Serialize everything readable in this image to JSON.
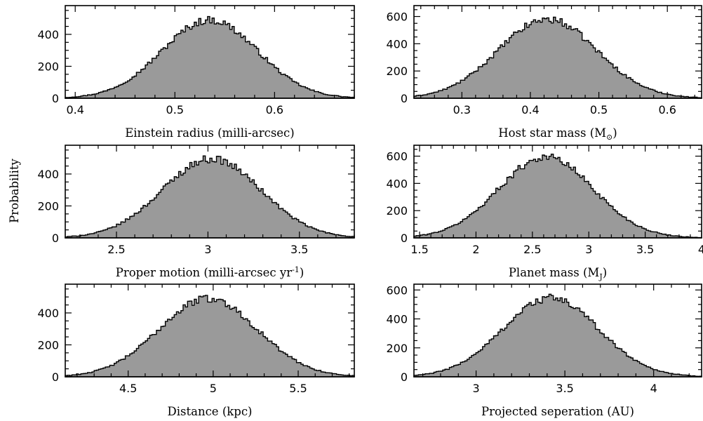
{
  "figure": {
    "ylabel": "Probability"
  },
  "colors": {
    "fill": "#9a9a9a",
    "stroke": "#000000",
    "background": "#ffffff"
  },
  "chart_data": [
    {
      "type": "histogram",
      "xlabel": "Einstein radius (milli-arcsec)",
      "xlim": [
        0.39,
        0.68
      ],
      "ylim": [
        0,
        580
      ],
      "xticks": [
        0.4,
        0.5,
        0.6
      ],
      "xtick_labels": [
        "0.4",
        "0.5",
        "0.6"
      ],
      "yticks": [
        0,
        200,
        400
      ],
      "ytick_labels": [
        "0",
        "200",
        "400"
      ],
      "peak": {
        "mean": 0.535,
        "sd": 0.048,
        "height": 490
      },
      "bins": 130
    },
    {
      "type": "histogram",
      "xlabel": "Host star mass (M",
      "xlabel_sub": "⊙",
      "xlabel_tail": ")",
      "xlim": [
        0.23,
        0.65
      ],
      "ylim": [
        0,
        680
      ],
      "xticks": [
        0.3,
        0.4,
        0.5,
        0.6
      ],
      "xtick_labels": [
        "0.3",
        "0.4",
        "0.5",
        "0.6"
      ],
      "yticks": [
        0,
        200,
        400,
        600
      ],
      "ytick_labels": [
        "0",
        "200",
        "400",
        "600"
      ],
      "peak": {
        "mean": 0.425,
        "sd": 0.072,
        "height": 580
      },
      "bins": 130
    },
    {
      "type": "histogram",
      "xlabel": "Proper motion (milli-arcsec yr",
      "xlabel_sup": "-1",
      "xlabel_tail": ")",
      "xlim": [
        2.22,
        3.8
      ],
      "ylim": [
        0,
        580
      ],
      "xticks": [
        2.5,
        3,
        3.5
      ],
      "xtick_labels": [
        "2.5",
        "3",
        "3.5"
      ],
      "yticks": [
        0,
        200,
        400
      ],
      "ytick_labels": [
        "0",
        "200",
        "400"
      ],
      "peak": {
        "mean": 3.02,
        "sd": 0.27,
        "height": 495
      },
      "bins": 130
    },
    {
      "type": "histogram",
      "xlabel": "Planet mass (M",
      "xlabel_sub": "J",
      "xlabel_tail": ")",
      "xlim": [
        1.45,
        4.0
      ],
      "ylim": [
        0,
        680
      ],
      "xticks": [
        1.5,
        2,
        2.5,
        3,
        3.5,
        4
      ],
      "xtick_labels": [
        "1.5",
        "2",
        "2.5",
        "3",
        "3.5",
        "4"
      ],
      "yticks": [
        0,
        200,
        400,
        600
      ],
      "ytick_labels": [
        "0",
        "200",
        "400",
        "600"
      ],
      "peak": {
        "mean": 2.62,
        "sd": 0.42,
        "height": 595
      },
      "bins": 130
    },
    {
      "type": "histogram",
      "xlabel": "Distance (kpc)",
      "xlim": [
        4.13,
        5.83
      ],
      "ylim": [
        0,
        580
      ],
      "xticks": [
        4.5,
        5,
        5.5
      ],
      "xtick_labels": [
        "4.5",
        "5",
        "5.5"
      ],
      "yticks": [
        0,
        200,
        400
      ],
      "ytick_labels": [
        "0",
        "200",
        "400"
      ],
      "peak": {
        "mean": 4.97,
        "sd": 0.29,
        "height": 490
      },
      "bins": 130
    },
    {
      "type": "histogram",
      "xlabel": "Projected seperation (AU)",
      "xlim": [
        2.65,
        4.27
      ],
      "ylim": [
        0,
        640
      ],
      "xticks": [
        3,
        3.5,
        4
      ],
      "xtick_labels": [
        "3",
        "3.5",
        "4"
      ],
      "yticks": [
        0,
        200,
        400,
        600
      ],
      "ytick_labels": [
        "0",
        "200",
        "400",
        "600"
      ],
      "peak": {
        "mean": 3.42,
        "sd": 0.27,
        "height": 545
      },
      "bins": 130
    }
  ]
}
